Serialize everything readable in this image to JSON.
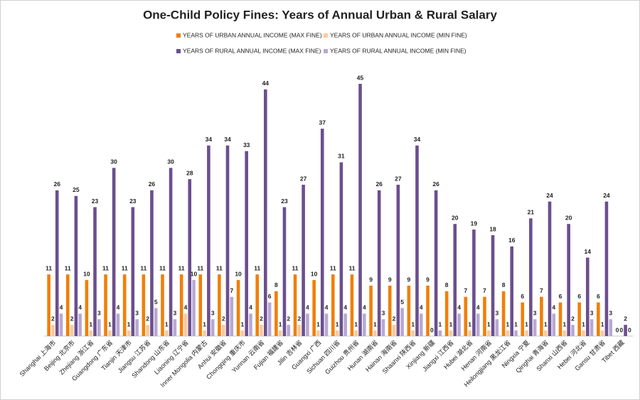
{
  "chart_data": {
    "type": "bar",
    "title": "One-Child Policy Fines:  Years of Annual Urban & Rural Salary",
    "categories": [
      "Shanghai 上海市",
      "Beijing 北京市",
      "Zhejiang 浙江省",
      "Guangdong 广东省",
      "Tianjin 天津市",
      "Jiangsu 江苏省",
      "Shandong 山东省",
      "Liaoning 辽宁省",
      "Inner Mongolia 内蒙古",
      "Anhui 安徽省",
      "Chongqing 重庆市",
      "Yunnan 云南省",
      "Fujian 福建省",
      "Jilin 吉林省",
      "Guangxi 广西",
      "Sichuan 四川省",
      "Guizhou 贵州省",
      "Hunan 湖南省",
      "Hainan 海南省",
      "Shaanxi 陕西省",
      "Xinjiang 新疆",
      "Jiangxi 江西省",
      "Hubei 湖北省",
      "Henan 河南省",
      "Heilongjiang 黑龙江省",
      "Ningxia 宁夏",
      "Qinghai 青海省",
      "Shanxi 山西省",
      "Hebei 河北省",
      "Gansu 甘肃省",
      "Tibet 西藏"
    ],
    "series": [
      {
        "name": "YEARS OF URBAN ANNUAL  INCOME (MAX FINE)",
        "color": "#f07f09",
        "values": [
          11,
          11,
          10,
          11,
          11,
          11,
          11,
          11,
          11,
          11,
          10,
          11,
          8,
          11,
          10,
          11,
          11,
          9,
          9,
          9,
          9,
          8,
          7,
          7,
          8,
          6,
          7,
          6,
          6,
          6,
          0
        ]
      },
      {
        "name": "YEARS OF URBAN ANNUAL INCOME (MIN FINE)",
        "color": "#fbc99a",
        "values": [
          2,
          2,
          1,
          1,
          1,
          2,
          1,
          4,
          1,
          2,
          1,
          2,
          1,
          2,
          1,
          1,
          1,
          1,
          2,
          1,
          0,
          1,
          1,
          1,
          1,
          1,
          1,
          1,
          1,
          1,
          0
        ]
      },
      {
        "name": "YEARS OF RURAL ANNUAL INCOME (MAX FINE)",
        "color": "#6b4f8e",
        "values": [
          26,
          25,
          23,
          30,
          23,
          26,
          30,
          28,
          34,
          34,
          33,
          44,
          23,
          27,
          37,
          31,
          45,
          26,
          27,
          34,
          26,
          20,
          19,
          18,
          16,
          21,
          24,
          20,
          14,
          24,
          2
        ]
      },
      {
        "name": "YEARS OF RURAL ANNUAL INCOME (MIN FINE)",
        "color": "#b7a8d3",
        "values": [
          4,
          4,
          3,
          4,
          3,
          5,
          3,
          10,
          3,
          7,
          4,
          6,
          2,
          4,
          4,
          4,
          4,
          3,
          5,
          4,
          1,
          4,
          4,
          3,
          1,
          3,
          4,
          2,
          3,
          3,
          0
        ]
      }
    ]
  }
}
